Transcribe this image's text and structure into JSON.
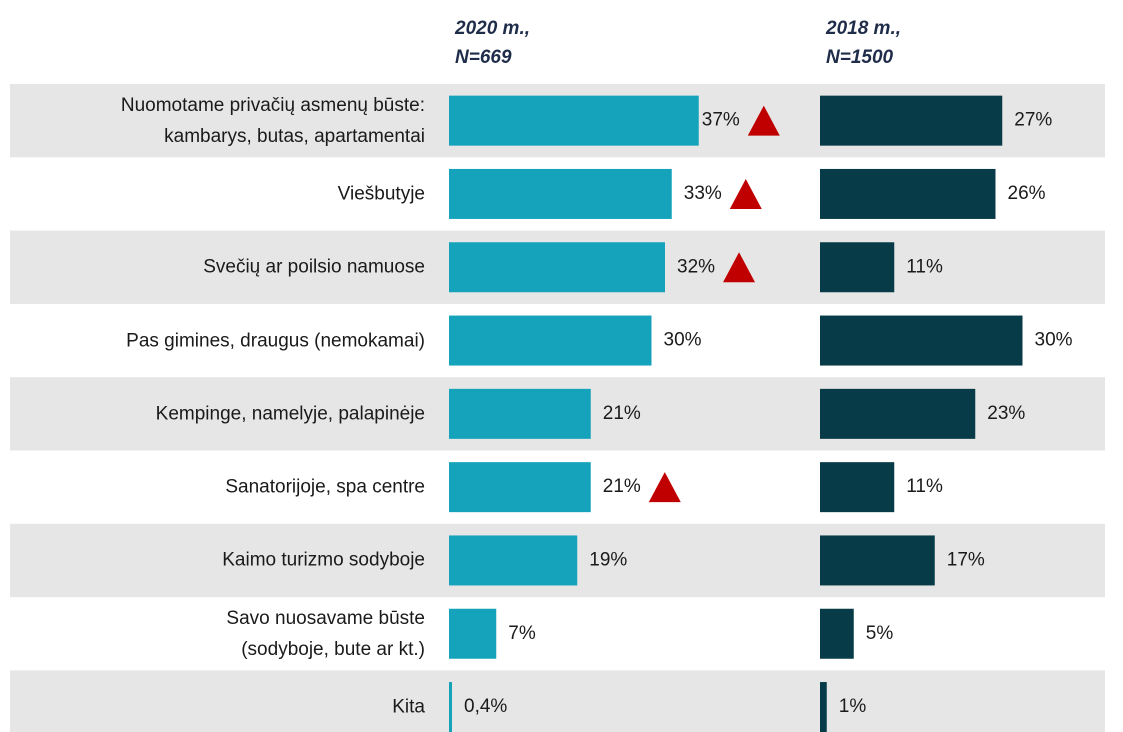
{
  "chart_data": {
    "type": "bar",
    "categories": [
      "Nuomotame privačių asmenų būste:\nkambarys, butas, apartamentai",
      "Viešbutyje",
      "Svečių ar poilsio namuose",
      "Pas gimines, draugus (nemokamai)",
      "Kempinge, namelyje, palapinėje",
      "Sanatorijoje, spa centre",
      "Kaimo turizmo sodyboje",
      "Savo nuosavame būste\n(sodyboje, bute ar kt.)",
      "Kita"
    ],
    "series": [
      {
        "name": "2020 m.,\nN=669",
        "color": "#14a3bb",
        "values": [
          37,
          33,
          32,
          30,
          21,
          21,
          19,
          7,
          0.4
        ],
        "value_labels": [
          "37%",
          "33%",
          "32%",
          "30%",
          "21%",
          "21%",
          "19%",
          "7%",
          "0,4%"
        ],
        "significant_increase": [
          true,
          true,
          true,
          false,
          false,
          true,
          false,
          false,
          false
        ]
      },
      {
        "name": "2018 m.,\nN=1500",
        "color": "#073b47",
        "values": [
          27,
          26,
          11,
          30,
          23,
          11,
          17,
          5,
          1
        ],
        "value_labels": [
          "27%",
          "26%",
          "11%",
          "30%",
          "23%",
          "11%",
          "17%",
          "5%",
          "1%"
        ]
      }
    ]
  }
}
